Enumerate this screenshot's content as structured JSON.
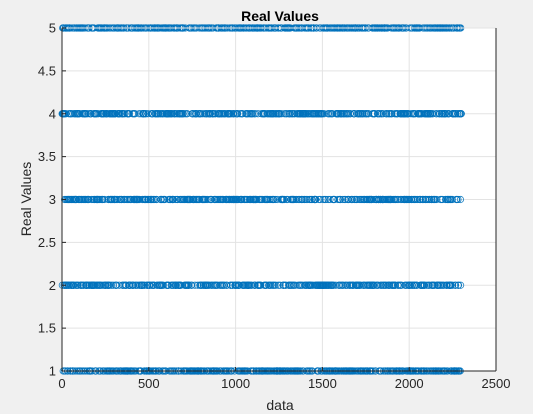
{
  "chart_data": {
    "type": "scatter",
    "title": "Real Values",
    "xlabel": "data",
    "ylabel": "Real Values",
    "xlim": [
      0,
      2500
    ],
    "ylim": [
      1,
      5
    ],
    "xticks": [
      0,
      500,
      1000,
      1500,
      2000,
      2500
    ],
    "yticks": [
      1,
      1.5,
      2,
      2.5,
      3,
      3.5,
      4,
      4.5,
      5
    ],
    "grid": true,
    "x_range_of_points": [
      1,
      2300
    ],
    "y_levels": [
      1,
      2,
      3,
      4,
      5
    ],
    "series": [
      {
        "marker": "open-circle",
        "color": "#0072bd",
        "description_points": "Each index from 1 to 2300 has one value in {1,2,3,4,5}; all five levels are densely populated across the full x range."
      }
    ]
  },
  "colors": {
    "figure_background": "#f0f0f0",
    "axes_background": "#ffffff",
    "grid": "#e3e3e3",
    "axis": "#262626",
    "marker": "#0072bd"
  }
}
